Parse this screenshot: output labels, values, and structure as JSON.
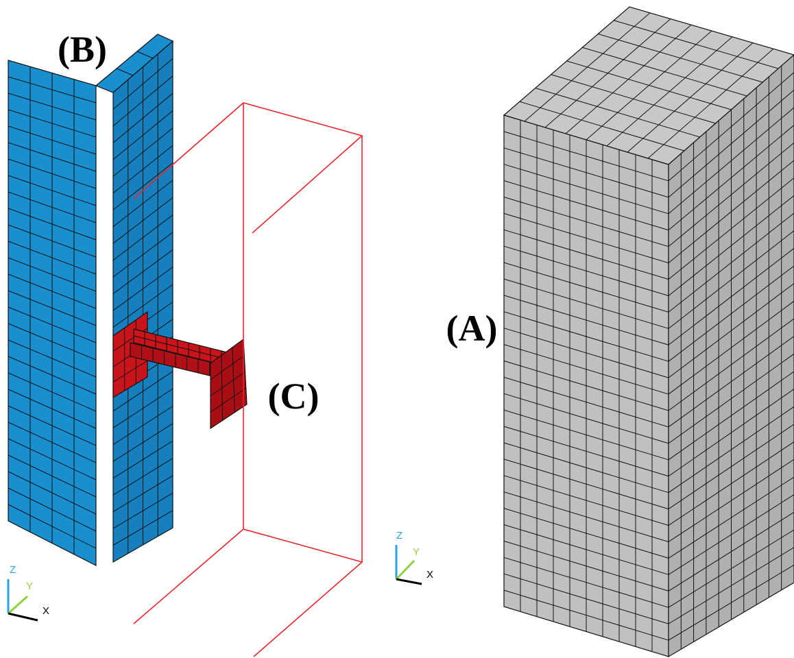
{
  "labels": {
    "a": "(A)",
    "b": "(B)",
    "c": "(C)"
  },
  "triads": [
    {
      "z": "Z",
      "y": "Y",
      "x": "X"
    },
    {
      "z": "Z",
      "y": "Y",
      "x": "X"
    }
  ]
}
